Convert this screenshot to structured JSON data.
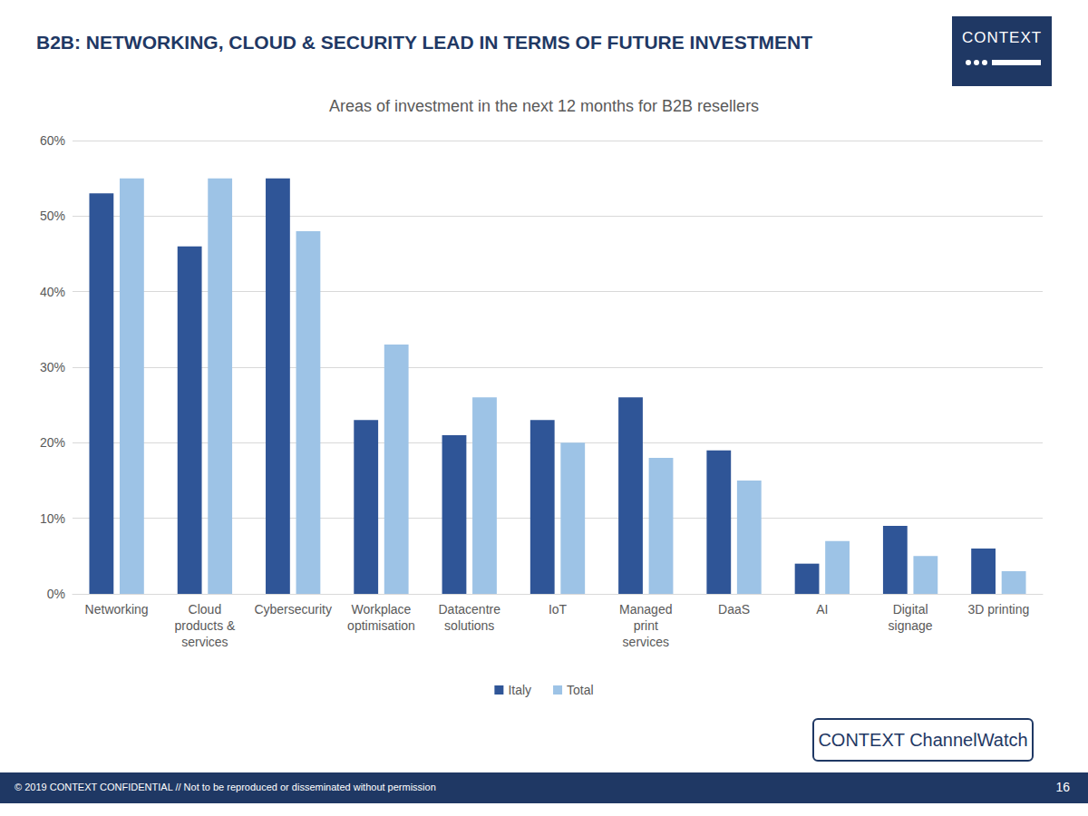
{
  "chart_data": {
    "type": "bar",
    "title": "B2B: NETWORKING, CLOUD & SECURITY LEAD IN TERMS OF FUTURE INVESTMENT",
    "subtitle": "Areas of investment in the next 12 months for B2B resellers",
    "categories": [
      "Networking",
      "Cloud products & services",
      "Cybersecurity",
      "Workplace optimisation",
      "Datacentre solutions",
      "IoT",
      "Managed print services",
      "DaaS",
      "AI",
      "Digital signage",
      "3D printing"
    ],
    "series": [
      {
        "name": "Italy",
        "color": "#2f5597",
        "values": [
          53,
          46,
          55,
          23,
          21,
          23,
          26,
          19,
          4,
          9,
          6
        ]
      },
      {
        "name": "Total",
        "color": "#9dc3e6",
        "values": [
          55,
          55,
          48,
          33,
          26,
          20,
          18,
          15,
          7,
          5,
          3
        ]
      }
    ],
    "ylim": [
      0,
      60
    ],
    "yticks": [
      {
        "value": 0,
        "label": "0%"
      },
      {
        "value": 10,
        "label": "10%"
      },
      {
        "value": 20,
        "label": "20%"
      },
      {
        "value": 30,
        "label": "30%"
      },
      {
        "value": 40,
        "label": "40%"
      },
      {
        "value": 50,
        "label": "50%"
      },
      {
        "value": 60,
        "label": "60%"
      }
    ],
    "grid": true,
    "legend": "bottom"
  },
  "slide": {
    "logo": "CONTEXT",
    "footer": "© 2019 CONTEXT CONFIDENTIAL // Not to be reproduced or disseminated without permission",
    "brand": "CONTEXT ChannelWatch",
    "page": 16
  }
}
